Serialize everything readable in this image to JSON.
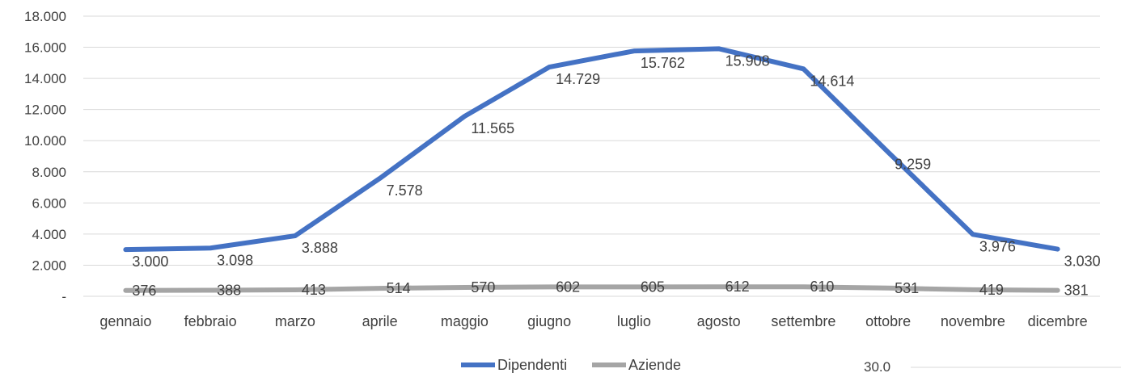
{
  "chart_data": {
    "type": "line",
    "title": "",
    "xlabel": "",
    "ylabel": "",
    "categories": [
      "gennaio",
      "febbraio",
      "marzo",
      "aprile",
      "maggio",
      "giugno",
      "luglio",
      "agosto",
      "settembre",
      "ottobre",
      "novembre",
      "dicembre"
    ],
    "series": [
      {
        "name": "Dipendenti",
        "color": "#4472C4",
        "values": [
          3000,
          3098,
          3888,
          7578,
          11565,
          14729,
          15762,
          15908,
          14614,
          9259,
          3976,
          3030
        ],
        "labels": [
          "3.000",
          "3.098",
          "3.888",
          "7.578",
          "11.565",
          "14.729",
          "15.762",
          "15.908",
          "14.614",
          "9.259",
          "3.976",
          "3.030"
        ]
      },
      {
        "name": "Aziende",
        "color": "#A5A5A5",
        "values": [
          376,
          388,
          413,
          514,
          570,
          602,
          605,
          612,
          610,
          531,
          419,
          381
        ],
        "labels": [
          "376",
          "388",
          "413",
          "514",
          "570",
          "602",
          "605",
          "612",
          "610",
          "531",
          "419",
          "381"
        ]
      }
    ],
    "ylim": [
      0,
      18000
    ],
    "yticks": [
      0,
      2000,
      4000,
      6000,
      8000,
      10000,
      12000,
      14000,
      16000,
      18000
    ],
    "ytick_labels": [
      "-",
      "2.000",
      "4.000",
      "6.000",
      "8.000",
      "10.000",
      "12.000",
      "14.000",
      "16.000",
      "18.000"
    ],
    "grid": true,
    "legend": "bottom",
    "extra_text": "30.0"
  }
}
